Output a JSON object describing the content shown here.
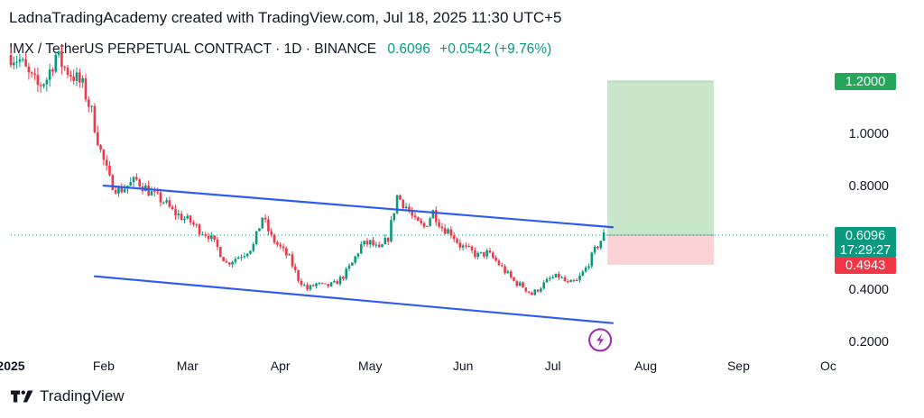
{
  "header": {
    "title": "LadnaTradingAcademy created with TradingView.com, Jul 18, 2025 11:30 UTC+5"
  },
  "symbol": {
    "name": "IMX / TetherUS PERPETUAL CONTRACT · 1D · BINANCE",
    "last": "0.6096",
    "change": "+0.0542 (+9.76%)"
  },
  "footer": {
    "brand": "TradingView",
    "logo_icon": "tradingview-logo-icon"
  },
  "colors": {
    "up": "#089981",
    "down": "#f23645",
    "trend": "#2f5cf0",
    "target_zone": "#c8e6c9",
    "stop_zone": "#fbd3d6",
    "target_label": "#26a65b",
    "stop_label": "#f23645",
    "price_label": "#089981",
    "badge": "#9c27b0"
  },
  "chart_data": {
    "type": "candlestick",
    "x_axis": {
      "ticks": [
        "2025",
        "Feb",
        "Mar",
        "Apr",
        "May",
        "Jun",
        "Jul",
        "Aug",
        "Sep",
        "Oc"
      ],
      "tick_dates": [
        "2025-01-01",
        "2025-02-01",
        "2025-03-01",
        "2025-04-01",
        "2025-05-01",
        "2025-06-01",
        "2025-07-01",
        "2025-08-01",
        "2025-09-01",
        "2025-10-01"
      ],
      "range": [
        "2025-01-01",
        "2025-10-01"
      ]
    },
    "y_axis": {
      "ticks": [
        "0.2000",
        "0.4000",
        "0.8000",
        "1.0000"
      ],
      "tick_values": [
        0.2,
        0.4,
        0.8,
        1.0
      ],
      "range": [
        0.15,
        1.3
      ]
    },
    "price_close": [
      [
        "2025-01-01",
        1.3
      ],
      [
        "2025-01-04",
        1.28
      ],
      [
        "2025-01-07",
        1.22
      ],
      [
        "2025-01-10",
        1.18
      ],
      [
        "2025-01-13",
        1.21
      ],
      [
        "2025-01-16",
        1.3
      ],
      [
        "2025-01-19",
        1.25
      ],
      [
        "2025-01-22",
        1.22
      ],
      [
        "2025-01-25",
        1.18
      ],
      [
        "2025-01-28",
        1.08
      ],
      [
        "2025-01-31",
        0.93
      ],
      [
        "2025-02-03",
        0.82
      ],
      [
        "2025-02-06",
        0.78
      ],
      [
        "2025-02-09",
        0.8
      ],
      [
        "2025-02-12",
        0.82
      ],
      [
        "2025-02-15",
        0.79
      ],
      [
        "2025-02-18",
        0.76
      ],
      [
        "2025-02-21",
        0.74
      ],
      [
        "2025-02-24",
        0.7
      ],
      [
        "2025-02-27",
        0.68
      ],
      [
        "2025-03-02",
        0.66
      ],
      [
        "2025-03-05",
        0.63
      ],
      [
        "2025-03-08",
        0.61
      ],
      [
        "2025-03-11",
        0.56
      ],
      [
        "2025-03-14",
        0.5
      ],
      [
        "2025-03-17",
        0.52
      ],
      [
        "2025-03-20",
        0.54
      ],
      [
        "2025-03-23",
        0.57
      ],
      [
        "2025-03-26",
        0.68
      ],
      [
        "2025-03-29",
        0.6
      ],
      [
        "2025-04-01",
        0.56
      ],
      [
        "2025-04-04",
        0.52
      ],
      [
        "2025-04-07",
        0.44
      ],
      [
        "2025-04-10",
        0.4
      ],
      [
        "2025-04-13",
        0.42
      ],
      [
        "2025-04-16",
        0.41
      ],
      [
        "2025-04-19",
        0.42
      ],
      [
        "2025-04-22",
        0.45
      ],
      [
        "2025-04-25",
        0.5
      ],
      [
        "2025-04-28",
        0.57
      ],
      [
        "2025-05-01",
        0.58
      ],
      [
        "2025-05-04",
        0.55
      ],
      [
        "2025-05-07",
        0.6
      ],
      [
        "2025-05-10",
        0.76
      ],
      [
        "2025-05-13",
        0.72
      ],
      [
        "2025-05-16",
        0.66
      ],
      [
        "2025-05-19",
        0.64
      ],
      [
        "2025-05-22",
        0.7
      ],
      [
        "2025-05-25",
        0.64
      ],
      [
        "2025-05-28",
        0.62
      ],
      [
        "2025-05-31",
        0.57
      ],
      [
        "2025-06-03",
        0.55
      ],
      [
        "2025-06-06",
        0.53
      ],
      [
        "2025-06-09",
        0.54
      ],
      [
        "2025-06-12",
        0.51
      ],
      [
        "2025-06-15",
        0.47
      ],
      [
        "2025-06-18",
        0.43
      ],
      [
        "2025-06-21",
        0.41
      ],
      [
        "2025-06-24",
        0.38
      ],
      [
        "2025-06-27",
        0.41
      ],
      [
        "2025-06-30",
        0.44
      ],
      [
        "2025-07-03",
        0.45
      ],
      [
        "2025-07-06",
        0.42
      ],
      [
        "2025-07-09",
        0.43
      ],
      [
        "2025-07-12",
        0.48
      ],
      [
        "2025-07-15",
        0.55
      ],
      [
        "2025-07-18",
        0.61
      ]
    ],
    "trendlines": [
      {
        "from": [
          "2025-02-01",
          0.8
        ],
        "to": [
          "2025-07-21",
          0.64
        ]
      },
      {
        "from": [
          "2025-01-29",
          0.45
        ],
        "to": [
          "2025-07-21",
          0.27
        ]
      }
    ],
    "position": {
      "entry": 0.6096,
      "target": 1.2,
      "stop": 0.4943,
      "from": "2025-07-18",
      "to": "2025-08-22"
    },
    "price_labels": {
      "target": "1.2000",
      "last": "0.6096",
      "countdown": "17:29:27",
      "stop": "0.4943"
    },
    "event_icon": {
      "name": "lightning-badge-icon",
      "date": "2025-07-18",
      "value": 0.24
    }
  }
}
